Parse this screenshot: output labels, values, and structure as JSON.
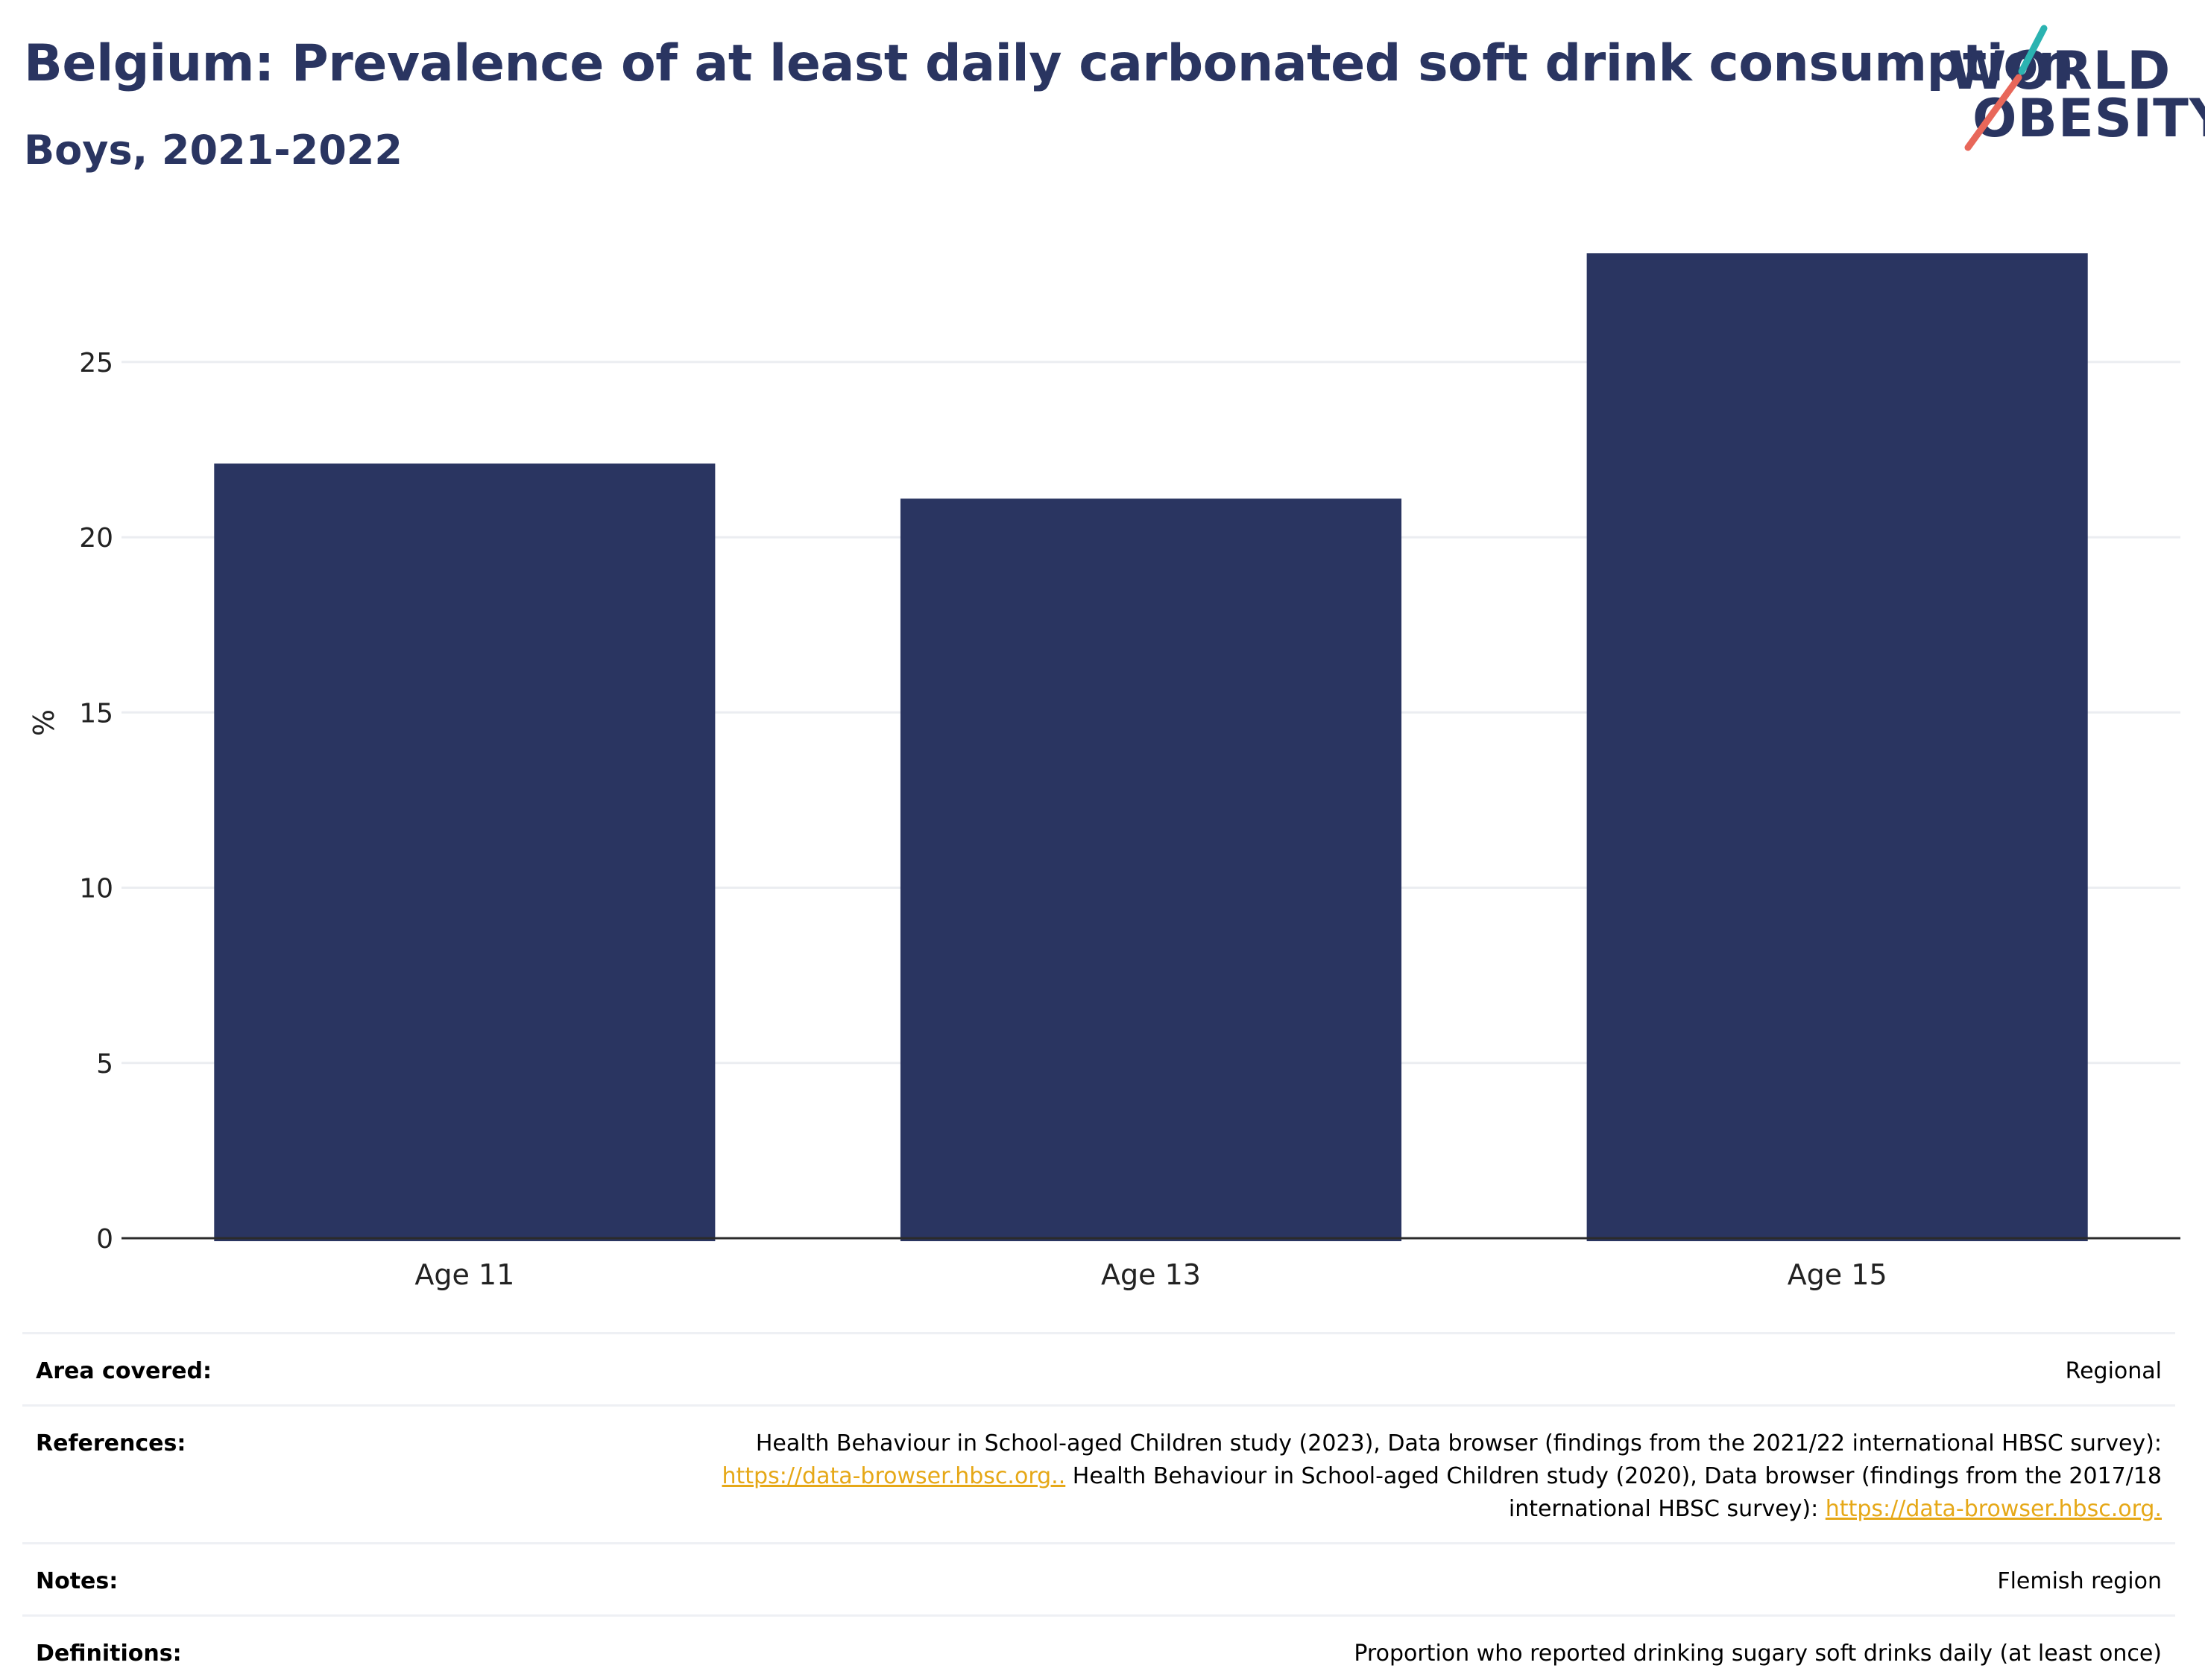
{
  "header": {
    "title": "Belgium: Prevalence of at least daily carbonated soft drink consumption",
    "subtitle": "Boys, 2021-2022"
  },
  "logo": {
    "line1": "WORLD",
    "line2": "OBESITY",
    "text_color": "#2a3561",
    "accent_teal": "#2bb3b1",
    "accent_coral": "#e8675a"
  },
  "chart_data": {
    "type": "bar",
    "categories": [
      "Age 11",
      "Age 13",
      "Age 15"
    ],
    "values": [
      22.1,
      21.1,
      28.1
    ],
    "ylabel": "%",
    "xlabel": "",
    "ylim": [
      0,
      28.1
    ],
    "yticks": [
      0,
      5,
      10,
      15,
      20,
      25
    ],
    "grid": true,
    "bar_color": "#2a3561"
  },
  "meta": {
    "area_label": "Area covered:",
    "area_value": "Regional",
    "references_label": "References:",
    "references_text1": "Health Behaviour in School-aged Children study (2023), Data browser (findings from the 2021/22 international HBSC survey):",
    "references_link1": "https://data-browser.hbsc.org..",
    "references_text2": "Health Behaviour in School-aged Children study (2020), Data browser (findings from the 2017/18 international HBSC survey):",
    "references_link2": "https://data-browser.hbsc.org.",
    "notes_label": "Notes:",
    "notes_value": "Flemish region",
    "definitions_label": "Definitions:",
    "definitions_value": "Proportion who reported drinking sugary soft drinks daily (at least once)"
  }
}
